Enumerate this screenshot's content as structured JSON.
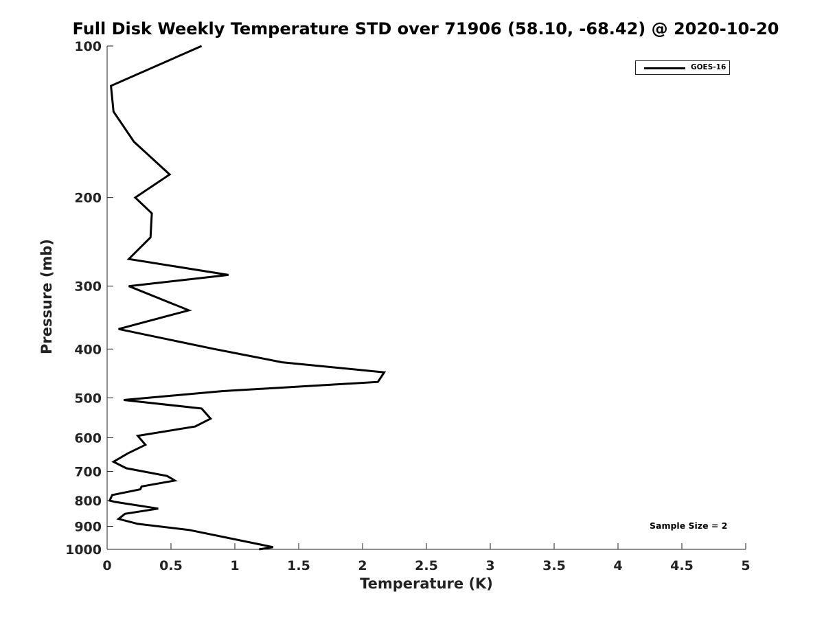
{
  "chart_data": {
    "type": "line",
    "title": "Full Disk Weekly Temperature STD over 71906 (58.10, -68.42) @ 2020-10-20",
    "xlabel": "Temperature (K)",
    "ylabel": "Pressure (mb)",
    "xlim": [
      0,
      5
    ],
    "ylim": [
      100,
      1000
    ],
    "y_scale": "log",
    "y_reversed": true,
    "grid": false,
    "legend_position": "top-right",
    "x_ticks": [
      "0",
      "0.5",
      "1",
      "1.5",
      "2",
      "2.5",
      "3",
      "3.5",
      "4",
      "4.5",
      "5"
    ],
    "y_ticks": [
      "100",
      "200",
      "300",
      "400",
      "500",
      "600",
      "700",
      "800",
      "900",
      "1000"
    ],
    "annotation": "Sample Size = 2",
    "series": [
      {
        "name": "GOES-16",
        "color": "#000000",
        "x": [
          0.74,
          0.03,
          0.05,
          0.21,
          0.49,
          0.22,
          0.35,
          0.34,
          0.17,
          0.95,
          0.17,
          0.64,
          0.09,
          0.84,
          1.37,
          2.17,
          2.12,
          0.9,
          0.13,
          0.74,
          0.81,
          0.69,
          0.24,
          0.3,
          0.16,
          0.05,
          0.15,
          0.47,
          0.53,
          0.27,
          0.26,
          0.04,
          0.02,
          0.06,
          0.4,
          0.14,
          0.09,
          0.24,
          0.64,
          1.3,
          1.19
        ],
        "y": [
          100,
          120,
          135,
          155,
          180,
          200,
          215,
          240,
          265,
          285,
          300,
          335,
          365,
          400,
          425,
          445,
          465,
          485,
          505,
          525,
          550,
          570,
          595,
          620,
          645,
          670,
          690,
          715,
          730,
          750,
          760,
          780,
          800,
          805,
          830,
          850,
          870,
          890,
          915,
          990,
          1000
        ]
      }
    ]
  }
}
